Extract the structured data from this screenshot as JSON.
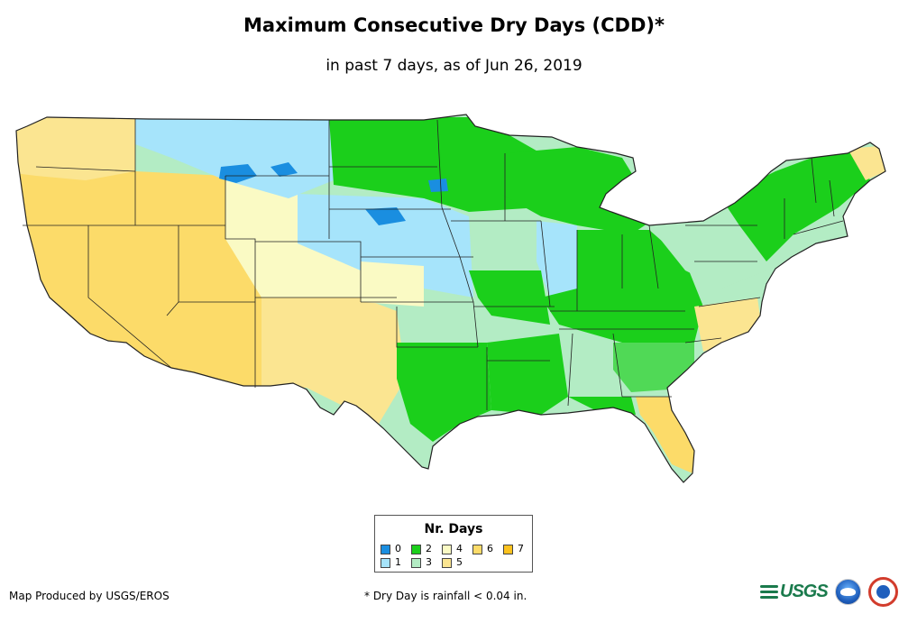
{
  "title": "Maximum Consecutive Dry Days (CDD)*",
  "subtitle": "in past 7 days, as of Jun 26, 2019",
  "legend": {
    "title": "Nr. Days",
    "items": [
      {
        "label": "0",
        "color": "#1a8ee0"
      },
      {
        "label": "1",
        "color": "#a6e4fb"
      },
      {
        "label": "2",
        "color": "#1bcf1b"
      },
      {
        "label": "3",
        "color": "#b3ecc4"
      },
      {
        "label": "4",
        "color": "#fafac4"
      },
      {
        "label": "5",
        "color": "#fbe591"
      },
      {
        "label": "6",
        "color": "#fcdb69"
      },
      {
        "label": "7",
        "color": "#fcc21e"
      }
    ]
  },
  "footer": {
    "credit": "Map Produced by USGS/EROS",
    "note": "* Dry Day is rainfall < 0.04 in.",
    "usgs_logo": "USGS",
    "usgs_logo_icon": "usgs-wave-icon",
    "noaa_logo_icon": "noaa-logo-icon",
    "nws_logo_icon": "nws-logo-icon"
  }
}
